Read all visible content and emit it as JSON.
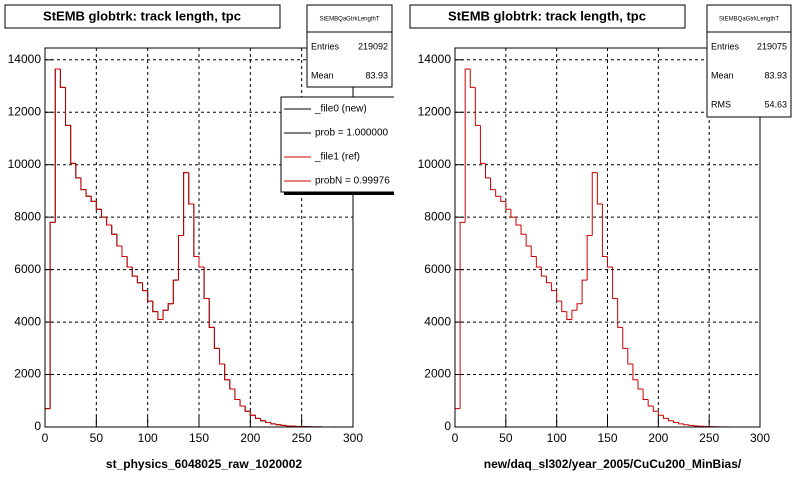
{
  "chart_data": [
    {
      "type": "histogram",
      "title": "StEMB globtrk: track length, tpc",
      "x_label": "st_physics_6048025_raw_1020002",
      "bins": [
        0,
        5,
        10,
        15,
        20,
        25,
        30,
        35,
        40,
        45,
        50,
        55,
        60,
        65,
        70,
        75,
        80,
        85,
        90,
        95,
        100,
        105,
        110,
        115,
        120,
        125,
        130,
        135,
        140,
        145,
        150,
        155,
        160,
        165,
        170,
        175,
        180,
        185,
        190,
        195,
        200,
        205,
        210,
        215,
        220,
        225,
        230,
        235,
        240,
        245,
        250,
        255,
        260,
        265,
        270,
        275,
        280,
        285,
        290,
        295,
        300
      ],
      "series": [
        {
          "color": "#000000",
          "values": [
            700,
            7800,
            13650,
            12950,
            11500,
            10050,
            9500,
            9050,
            8800,
            8600,
            8300,
            8000,
            7700,
            7350,
            6900,
            6500,
            6100,
            5750,
            5500,
            5200,
            4800,
            4400,
            4100,
            4450,
            4700,
            5600,
            7300,
            9700,
            8500,
            6500,
            6100,
            4900,
            3800,
            3000,
            2400,
            1800,
            1450,
            1050,
            800,
            600,
            450,
            330,
            240,
            170,
            120,
            85,
            60,
            40,
            30,
            20,
            12,
            8,
            5,
            3,
            2,
            1,
            1,
            0,
            0,
            0
          ]
        },
        {
          "color": "#cc0000",
          "values": [
            700,
            7800,
            13650,
            12950,
            11500,
            10050,
            9500,
            9050,
            8800,
            8600,
            8300,
            8000,
            7700,
            7350,
            6900,
            6500,
            6100,
            5750,
            5500,
            5200,
            4800,
            4400,
            4100,
            4450,
            4700,
            5600,
            7300,
            9700,
            8500,
            6500,
            6100,
            4900,
            3800,
            3000,
            2400,
            1800,
            1450,
            1050,
            800,
            600,
            450,
            330,
            240,
            170,
            120,
            85,
            60,
            40,
            30,
            20,
            12,
            8,
            5,
            3,
            2,
            1,
            1,
            0,
            0,
            0
          ]
        }
      ],
      "xlim": [
        0,
        300
      ],
      "xticks": [
        0,
        50,
        100,
        150,
        200,
        250,
        300
      ],
      "ylim": [
        0,
        14450
      ],
      "yticks": [
        0,
        2000,
        4000,
        6000,
        8000,
        10000,
        12000,
        14000
      ],
      "grid": true,
      "stats": {
        "title": "StEMBQaGtrkLengthT",
        "rows": [
          {
            "label": "Entries",
            "value": 219092
          },
          {
            "label": "Mean",
            "value": 83.93
          }
        ]
      },
      "legend": [
        {
          "label": "_file0 (new)",
          "color": "#000000"
        },
        {
          "label": "prob = 1.000000",
          "color": "#000000"
        },
        {
          "label": "_file1 (ref)",
          "color": "#cc0000"
        },
        {
          "label": "probN = 0.99976",
          "color": "#cc0000"
        }
      ]
    },
    {
      "type": "histogram",
      "title": "StEMB globtrk: track length, tpc",
      "x_label": "new/daq_sl302/year_2005/CuCu200_MinBias/",
      "bins": [
        0,
        5,
        10,
        15,
        20,
        25,
        30,
        35,
        40,
        45,
        50,
        55,
        60,
        65,
        70,
        75,
        80,
        85,
        90,
        95,
        100,
        105,
        110,
        115,
        120,
        125,
        130,
        135,
        140,
        145,
        150,
        155,
        160,
        165,
        170,
        175,
        180,
        185,
        190,
        195,
        200,
        205,
        210,
        215,
        220,
        225,
        230,
        235,
        240,
        245,
        250,
        255,
        260,
        265,
        270,
        275,
        280,
        285,
        290,
        295,
        300
      ],
      "series": [
        {
          "color": "#cc0000",
          "values": [
            700,
            7800,
            13650,
            12950,
            11500,
            10050,
            9500,
            9050,
            8800,
            8600,
            8300,
            8000,
            7700,
            7350,
            6900,
            6500,
            6100,
            5750,
            5500,
            5200,
            4800,
            4400,
            4100,
            4450,
            4700,
            5600,
            7300,
            9700,
            8500,
            6500,
            6100,
            4900,
            3800,
            3000,
            2400,
            1800,
            1450,
            1050,
            800,
            600,
            450,
            330,
            240,
            170,
            120,
            85,
            60,
            40,
            30,
            20,
            12,
            8,
            5,
            3,
            2,
            1,
            1,
            0,
            0,
            0
          ]
        }
      ],
      "xlim": [
        0,
        300
      ],
      "xticks": [
        0,
        50,
        100,
        150,
        200,
        250,
        300
      ],
      "ylim": [
        0,
        14450
      ],
      "yticks": [
        0,
        2000,
        4000,
        6000,
        8000,
        10000,
        12000,
        14000
      ],
      "grid": true,
      "stats": {
        "title": "StEMBQaGtrkLengthT",
        "rows": [
          {
            "label": "Entries",
            "value": 219075
          },
          {
            "label": "Mean",
            "value": 83.93
          },
          {
            "label": "RMS",
            "value": 54.63
          }
        ]
      }
    }
  ]
}
